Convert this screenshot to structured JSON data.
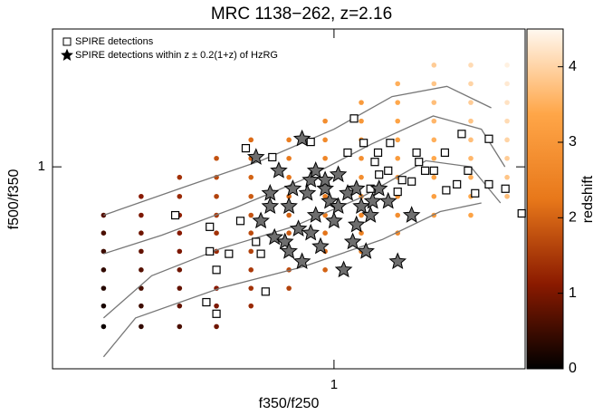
{
  "chart_data": {
    "type": "scatter",
    "title": "MRC 1138−262, z=2.16",
    "x_label": "f350/f250",
    "y_label": "f500/f350",
    "xscale": "log",
    "yscale": "log",
    "xlim": [
      0.14,
      3.8
    ],
    "ylim": [
      0.2,
      3.0
    ],
    "xticks": [
      1
    ],
    "yticks": [
      1
    ],
    "legend": "upper left",
    "series": [
      {
        "name": "SPIRE detections",
        "marker": "square",
        "color": "#ffffff",
        "x": [
          0.33,
          0.54,
          0.65,
          0.85,
          1.15,
          1.23,
          1.48,
          1.78,
          1.81,
          2.17,
          2.44,
          2.95,
          2.55,
          2.95,
          3.31,
          3.71,
          2.19,
          1.89,
          1.61,
          1.46,
          1.37,
          1.36,
          1.29,
          0.42,
          0.44,
          0.48,
          0.42,
          0.52,
          0.6,
          0.62,
          0.41,
          0.44,
          0.58,
          1.56,
          1.72,
          2.01,
          2.36,
          2.68,
          1.1,
          1.33
        ],
        "y": [
          0.68,
          1.16,
          1.08,
          1.22,
          1.47,
          1.21,
          1.21,
          1.12,
          1.04,
          1.12,
          1.3,
          1.25,
          0.97,
          0.87,
          0.84,
          0.69,
          0.83,
          0.97,
          0.9,
          0.97,
          0.94,
          1.12,
          0.84,
          0.62,
          0.44,
          0.5,
          0.51,
          0.65,
          0.5,
          0.37,
          0.34,
          0.31,
          0.55,
          0.82,
          0.89,
          0.97,
          0.87,
          0.81,
          1.12,
          1.04
        ]
      },
      {
        "name": "SPIRE detections within z ± 0.2(1+z) of HzRG",
        "marker": "star",
        "color": "#6e6e6e",
        "x": [
          0.58,
          0.64,
          0.68,
          0.73,
          0.78,
          0.8,
          0.85,
          0.88,
          0.91,
          0.94,
          0.97,
          1.03,
          1.07,
          1.1,
          1.17,
          1.21,
          1.29,
          1.37,
          1.46,
          1.56,
          0.88,
          0.75,
          0.6,
          0.66,
          0.71,
          0.83,
          1.0,
          1.14,
          1.25,
          1.72,
          0.64,
          0.8,
          0.94,
          1.17,
          1.31,
          1.03,
          0.85,
          0.73
        ],
        "y": [
          1.08,
          0.81,
          0.97,
          0.73,
          0.61,
          1.25,
          0.9,
          0.68,
          0.53,
          0.84,
          0.76,
          0.94,
          0.44,
          0.81,
          0.63,
          0.73,
          0.68,
          0.84,
          0.76,
          0.47,
          0.97,
          0.84,
          0.65,
          0.57,
          0.55,
          0.81,
          0.65,
          0.55,
          0.51,
          0.68,
          0.73,
          0.47,
          0.9,
          0.84,
          0.76,
          0.73,
          0.59,
          0.51
        ]
      }
    ],
    "model_grid": [
      {
        "x": 0.2,
        "y": [
          0.28,
          0.33,
          0.38,
          0.44,
          0.51,
          0.59,
          0.68
        ],
        "redshift": [
          0.1,
          0.2,
          0.3,
          0.4,
          0.5,
          0.6,
          0.7
        ]
      },
      {
        "x": 0.26,
        "y": [
          0.28,
          0.33,
          0.38,
          0.44,
          0.51,
          0.59,
          0.68,
          0.79
        ],
        "redshift": [
          0.4,
          0.5,
          0.6,
          0.7,
          0.8,
          0.9,
          1.0,
          1.1
        ]
      },
      {
        "x": 0.34,
        "y": [
          0.28,
          0.33,
          0.38,
          0.44,
          0.51,
          0.59,
          0.68,
          0.79,
          0.92
        ],
        "redshift": [
          0.6,
          0.8,
          0.8,
          0.9,
          1.0,
          1.1,
          1.2,
          1.3,
          1.4
        ]
      },
      {
        "x": 0.44,
        "y": [
          0.28,
          0.33,
          0.38,
          0.44,
          0.51,
          0.59,
          0.68,
          0.79,
          0.92,
          1.07
        ],
        "redshift": [
          0.9,
          1.0,
          1.1,
          1.2,
          1.3,
          1.4,
          1.5,
          1.6,
          1.7,
          1.8
        ]
      },
      {
        "x": 0.56,
        "y": [
          0.33,
          0.38,
          0.44,
          0.51,
          0.59,
          0.68,
          0.79,
          0.92,
          1.07,
          1.24
        ],
        "redshift": [
          1.3,
          1.4,
          1.5,
          1.6,
          1.7,
          1.8,
          1.9,
          2.0,
          2.0,
          2.1
        ]
      },
      {
        "x": 0.73,
        "y": [
          0.38,
          0.44,
          0.51,
          0.59,
          0.68,
          0.79,
          0.92,
          1.07,
          1.24
        ],
        "redshift": [
          1.6,
          1.7,
          1.8,
          1.9,
          2.0,
          2.1,
          2.2,
          2.3,
          2.4
        ]
      },
      {
        "x": 0.94,
        "y": [
          0.44,
          0.51,
          0.59,
          0.68,
          0.79,
          0.92,
          1.07,
          1.24,
          1.44
        ],
        "redshift": [
          2.0,
          2.1,
          2.2,
          2.3,
          2.4,
          2.5,
          2.6,
          2.7,
          2.8
        ]
      },
      {
        "x": 1.21,
        "y": [
          0.51,
          0.59,
          0.68,
          0.79,
          0.92,
          1.07,
          1.24,
          1.44,
          1.67
        ],
        "redshift": [
          2.4,
          2.5,
          2.6,
          2.7,
          2.8,
          2.8,
          2.9,
          3.0,
          3.1
        ]
      },
      {
        "x": 1.56,
        "y": [
          0.59,
          0.68,
          0.79,
          0.92,
          1.07,
          1.24,
          1.44,
          1.67,
          1.94
        ],
        "redshift": [
          2.7,
          2.8,
          2.9,
          3.0,
          3.1,
          3.2,
          3.3,
          3.4,
          3.5
        ]
      },
      {
        "x": 2.01,
        "y": [
          0.68,
          0.79,
          0.92,
          1.07,
          1.24,
          1.44,
          1.67,
          1.94,
          2.25
        ],
        "redshift": [
          3.1,
          3.2,
          3.3,
          3.4,
          3.5,
          3.6,
          3.7,
          3.8,
          3.9
        ]
      },
      {
        "x": 2.6,
        "y": [
          0.68,
          0.79,
          0.92,
          1.07,
          1.24,
          1.44,
          1.67,
          1.94,
          2.25
        ],
        "redshift": [
          3.3,
          3.4,
          3.5,
          3.6,
          3.7,
          3.8,
          3.9,
          4.0,
          4.1
        ]
      },
      {
        "x": 3.35,
        "y": [
          0.79,
          0.92,
          1.07,
          1.24,
          1.44,
          1.67,
          1.94,
          2.25
        ],
        "redshift": [
          3.7,
          3.8,
          3.9,
          4.0,
          4.1,
          4.2,
          4.3,
          4.4
        ]
      }
    ],
    "contours": [
      {
        "x": [
          0.2,
          0.35,
          0.6,
          1.0,
          1.5,
          2.2,
          3.0
        ],
        "y": [
          0.68,
          0.85,
          1.05,
          1.35,
          1.75,
          1.9,
          1.6
        ]
      },
      {
        "x": [
          0.2,
          0.3,
          0.5,
          0.8,
          1.3,
          2.0,
          2.8,
          3.3
        ],
        "y": [
          0.5,
          0.58,
          0.72,
          0.9,
          1.2,
          1.5,
          1.35,
          1.0
        ]
      },
      {
        "x": [
          0.2,
          0.28,
          0.45,
          0.75,
          1.2,
          1.9,
          2.6,
          3.2
        ],
        "y": [
          0.3,
          0.42,
          0.52,
          0.62,
          0.78,
          1.05,
          1.0,
          0.75
        ]
      },
      {
        "x": [
          0.2,
          0.25,
          0.45,
          0.8,
          1.4,
          2.1,
          2.8
        ],
        "y": [
          0.22,
          0.3,
          0.38,
          0.45,
          0.56,
          0.7,
          0.75
        ]
      }
    ],
    "contour_color": "#777777",
    "colorbar": {
      "label": "redshift",
      "lim": [
        0,
        4.5
      ],
      "ticks": [
        0,
        1,
        2,
        3,
        4
      ],
      "colormap": [
        "#000000",
        "#8b1a00",
        "#e8781a",
        "#ffa648",
        "#fff8f0"
      ]
    }
  }
}
